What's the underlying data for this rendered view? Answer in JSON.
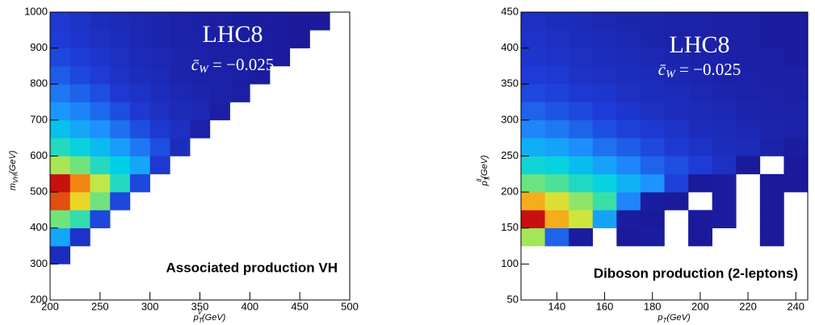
{
  "chart_data": [
    {
      "type": "heatmap",
      "title": "LHC8",
      "formula": {
        "symbol": "c̄",
        "sub": "W",
        "text": " = −0.025"
      },
      "annotation": "Associated production VH",
      "xlabel": {
        "base": "p",
        "sup": "V",
        "sub": "T",
        "unit": "(GeV)"
      },
      "ylabel": {
        "base": "m",
        "sub": "VH",
        "unit": "(GeV)"
      },
      "xlim": [
        200,
        500
      ],
      "ylim": [
        200,
        1000
      ],
      "xticks": [
        200,
        250,
        300,
        350,
        400,
        450,
        500
      ],
      "yticks": [
        200,
        300,
        400,
        500,
        600,
        700,
        800,
        900,
        1000
      ],
      "xbins": [
        200,
        220,
        240,
        260,
        280,
        300,
        320,
        340,
        360,
        380,
        400,
        420,
        440,
        460,
        480,
        500
      ],
      "ybins": [
        200,
        250,
        300,
        350,
        400,
        450,
        500,
        550,
        600,
        650,
        700,
        750,
        800,
        850,
        900,
        950,
        1000
      ],
      "z": [
        [
          null,
          null,
          null,
          null,
          null,
          null,
          null,
          null,
          null,
          null,
          null,
          null,
          null,
          null,
          null
        ],
        [
          null,
          null,
          null,
          null,
          null,
          null,
          null,
          null,
          null,
          null,
          null,
          null,
          null,
          null,
          null
        ],
        [
          8,
          null,
          null,
          null,
          null,
          null,
          null,
          null,
          null,
          null,
          null,
          null,
          null,
          null,
          null
        ],
        [
          30,
          10,
          null,
          null,
          null,
          null,
          null,
          null,
          null,
          null,
          null,
          null,
          null,
          null,
          null
        ],
        [
          55,
          48,
          15,
          null,
          null,
          null,
          null,
          null,
          null,
          null,
          null,
          null,
          null,
          null,
          null
        ],
        [
          92,
          72,
          55,
          15,
          null,
          null,
          null,
          null,
          null,
          null,
          null,
          null,
          null,
          null,
          null
        ],
        [
          100,
          85,
          62,
          45,
          15,
          null,
          null,
          null,
          null,
          null,
          null,
          null,
          null,
          null,
          null
        ],
        [
          60,
          55,
          45,
          38,
          30,
          12,
          null,
          null,
          null,
          null,
          null,
          null,
          null,
          null,
          null
        ],
        [
          45,
          40,
          34,
          28,
          22,
          16,
          8,
          null,
          null,
          null,
          null,
          null,
          null,
          null,
          null
        ],
        [
          35,
          30,
          26,
          21,
          16,
          12,
          9,
          4,
          null,
          null,
          null,
          null,
          null,
          null,
          null
        ],
        [
          27,
          24,
          20,
          16,
          12,
          9,
          7,
          6,
          3,
          null,
          null,
          null,
          null,
          null,
          null
        ],
        [
          22,
          19,
          16,
          12,
          10,
          8,
          6,
          5,
          4,
          3,
          null,
          null,
          null,
          null,
          null
        ],
        [
          18,
          15,
          13,
          10,
          8,
          7,
          5,
          4,
          4,
          3,
          2,
          null,
          null,
          null,
          null
        ],
        [
          15,
          13,
          11,
          9,
          7,
          6,
          5,
          4,
          3,
          3,
          2,
          2,
          null,
          null,
          null
        ],
        [
          13,
          11,
          9,
          8,
          6,
          5,
          4,
          4,
          3,
          2,
          2,
          2,
          1,
          null,
          null
        ],
        [
          12,
          10,
          8,
          7,
          6,
          5,
          4,
          3,
          3,
          2,
          2,
          2,
          1,
          1,
          null
        ]
      ],
      "colorscale": [
        "#1a1a9a",
        "#1e3cd8",
        "#1e90ff",
        "#00d0e8",
        "#40e0a0",
        "#c8e840",
        "#f8d020",
        "#f07010",
        "#c81010"
      ]
    },
    {
      "type": "heatmap",
      "title": "LHC8",
      "formula": {
        "symbol": "c̄",
        "sub": "W",
        "text": " = −0.025"
      },
      "annotation": "Diboson production (2-leptons)",
      "xlabel": {
        "base": "p",
        "sub": "T",
        "unit": "(GeV)"
      },
      "ylabel": {
        "base": "p",
        "sup": "ll",
        "sub": "T",
        "unit": "(GeV)"
      },
      "xlim": [
        125,
        245
      ],
      "ylim": [
        50,
        450
      ],
      "xticks": [
        140,
        160,
        180,
        200,
        220,
        240
      ],
      "yticks": [
        50,
        100,
        150,
        200,
        250,
        300,
        350,
        400,
        450
      ],
      "xbins": [
        125,
        135,
        145,
        155,
        165,
        175,
        185,
        195,
        205,
        215,
        225,
        235,
        245
      ],
      "ybins": [
        50,
        75,
        100,
        125,
        150,
        175,
        200,
        225,
        250,
        275,
        300,
        325,
        350,
        375,
        400,
        425,
        450
      ],
      "z": [
        [
          null,
          null,
          null,
          null,
          null,
          null,
          null,
          null,
          null,
          null,
          null,
          null
        ],
        [
          null,
          null,
          null,
          null,
          null,
          null,
          null,
          null,
          null,
          null,
          null,
          null
        ],
        [
          null,
          null,
          null,
          null,
          null,
          null,
          null,
          null,
          null,
          null,
          null,
          null
        ],
        [
          60,
          20,
          3,
          null,
          2,
          3,
          null,
          2,
          null,
          null,
          2,
          null
        ],
        [
          100,
          80,
          65,
          30,
          3,
          2,
          null,
          2,
          3,
          null,
          2,
          null
        ],
        [
          80,
          68,
          58,
          50,
          25,
          3,
          2,
          null,
          3,
          null,
          2,
          null
        ],
        [
          55,
          52,
          45,
          40,
          33,
          27,
          15,
          2,
          3,
          null,
          2,
          2
        ],
        [
          42,
          40,
          35,
          30,
          25,
          20,
          17,
          14,
          10,
          2,
          null,
          2
        ],
        [
          32,
          30,
          26,
          22,
          19,
          16,
          13,
          11,
          9,
          8,
          5,
          3
        ],
        [
          25,
          23,
          20,
          17,
          15,
          13,
          11,
          9,
          8,
          7,
          6,
          5
        ],
        [
          20,
          18,
          16,
          14,
          12,
          10,
          9,
          8,
          7,
          6,
          5,
          5
        ],
        [
          16,
          15,
          13,
          12,
          10,
          9,
          8,
          7,
          6,
          5,
          5,
          4
        ],
        [
          14,
          13,
          11,
          10,
          9,
          8,
          7,
          6,
          5,
          5,
          4,
          4
        ],
        [
          12,
          11,
          10,
          9,
          8,
          7,
          6,
          5,
          5,
          4,
          4,
          3
        ],
        [
          11,
          10,
          9,
          8,
          7,
          6,
          5,
          5,
          4,
          4,
          3,
          3
        ],
        [
          10,
          9,
          8,
          7,
          6,
          6,
          5,
          5,
          4,
          4,
          3,
          3
        ]
      ],
      "colorscale": [
        "#1a1a9a",
        "#1e3cd8",
        "#1e90ff",
        "#00d0e8",
        "#40e0a0",
        "#c8e840",
        "#f8d020",
        "#f07010",
        "#c81010"
      ]
    }
  ]
}
